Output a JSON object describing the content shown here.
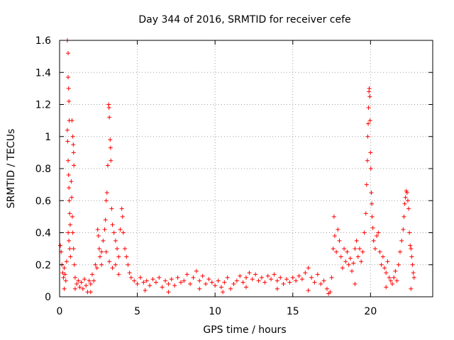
{
  "chart_data": {
    "type": "scatter",
    "title": "Day 344 of 2016, SRMTID for receiver cefe",
    "xlabel": "GPS time / hours",
    "ylabel": "SRMTID / TECUs",
    "xlim": [
      0,
      24
    ],
    "ylim": [
      0,
      1.6
    ],
    "xticks": [
      0,
      5,
      10,
      15,
      20
    ],
    "xtick_labels": [
      "0",
      "5",
      "10",
      "15",
      "20"
    ],
    "yticks": [
      0,
      0.2,
      0.4,
      0.6,
      0.8,
      1.0,
      1.2,
      1.4,
      1.6
    ],
    "ytick_labels": [
      "0",
      "0.2",
      "0.4",
      "0.6",
      "0.8",
      "1",
      "1.2",
      "1.4",
      "1.6"
    ],
    "grid": true,
    "marker": "+",
    "color": "#ff0000",
    "series": [
      {
        "name": "SRMTID",
        "points": [
          [
            0.05,
            0.32
          ],
          [
            0.1,
            0.28
          ],
          [
            0.15,
            0.2
          ],
          [
            0.2,
            0.15
          ],
          [
            0.25,
            0.12
          ],
          [
            0.3,
            0.18
          ],
          [
            0.35,
            0.14
          ],
          [
            0.4,
            0.1
          ],
          [
            0.45,
            0.22
          ],
          [
            0.5,
            1.6
          ],
          [
            0.55,
            1.52
          ],
          [
            0.55,
            1.37
          ],
          [
            0.58,
            1.3
          ],
          [
            0.6,
            1.22
          ],
          [
            0.62,
            1.1
          ],
          [
            0.5,
            1.04
          ],
          [
            0.52,
            0.97
          ],
          [
            0.55,
            0.85
          ],
          [
            0.58,
            0.76
          ],
          [
            0.6,
            0.68
          ],
          [
            0.62,
            0.6
          ],
          [
            0.65,
            0.52
          ],
          [
            0.68,
            0.45
          ],
          [
            0.55,
            0.4
          ],
          [
            0.6,
            0.35
          ],
          [
            0.65,
            0.3
          ],
          [
            0.7,
            0.25
          ],
          [
            0.8,
            1.1
          ],
          [
            0.85,
            1.0
          ],
          [
            0.88,
            0.95
          ],
          [
            0.9,
            0.9
          ],
          [
            0.92,
            0.82
          ],
          [
            0.75,
            0.72
          ],
          [
            0.78,
            0.62
          ],
          [
            0.82,
            0.5
          ],
          [
            0.85,
            0.4
          ],
          [
            0.9,
            0.3
          ],
          [
            0.95,
            0.2
          ],
          [
            1.0,
            0.12
          ],
          [
            1.1,
            0.08
          ],
          [
            1.2,
            0.1
          ],
          [
            1.3,
            0.06
          ],
          [
            1.4,
            0.09
          ],
          [
            1.5,
            0.05
          ],
          [
            1.6,
            0.11
          ],
          [
            1.7,
            0.07
          ],
          [
            1.8,
            0.03
          ],
          [
            1.9,
            0.1
          ],
          [
            2.0,
            0.08
          ],
          [
            2.1,
            0.14
          ],
          [
            2.2,
            0.1
          ],
          [
            2.3,
            0.2
          ],
          [
            2.4,
            0.18
          ],
          [
            2.45,
            0.42
          ],
          [
            2.5,
            0.38
          ],
          [
            2.55,
            0.3
          ],
          [
            2.6,
            0.25
          ],
          [
            2.7,
            0.28
          ],
          [
            2.8,
            0.35
          ],
          [
            2.9,
            0.42
          ],
          [
            2.95,
            0.48
          ],
          [
            3.0,
            0.6
          ],
          [
            3.05,
            0.65
          ],
          [
            3.1,
            0.82
          ],
          [
            3.15,
            1.2
          ],
          [
            3.18,
            1.18
          ],
          [
            3.2,
            1.12
          ],
          [
            3.25,
            0.98
          ],
          [
            3.28,
            0.93
          ],
          [
            3.3,
            0.85
          ],
          [
            3.35,
            0.55
          ],
          [
            3.4,
            0.45
          ],
          [
            3.5,
            0.4
          ],
          [
            3.6,
            0.35
          ],
          [
            3.7,
            0.3
          ],
          [
            3.8,
            0.25
          ],
          [
            3.9,
            0.42
          ],
          [
            4.0,
            0.55
          ],
          [
            4.05,
            0.5
          ],
          [
            4.1,
            0.4
          ],
          [
            4.2,
            0.3
          ],
          [
            4.3,
            0.25
          ],
          [
            4.4,
            0.2
          ],
          [
            4.5,
            0.15
          ],
          [
            2.7,
            0.2
          ],
          [
            3.0,
            0.28
          ],
          [
            3.2,
            0.22
          ],
          [
            3.4,
            0.18
          ],
          [
            3.6,
            0.2
          ],
          [
            3.8,
            0.14
          ],
          [
            4.6,
            0.12
          ],
          [
            4.8,
            0.1
          ],
          [
            5.0,
            0.08
          ],
          [
            5.2,
            0.12
          ],
          [
            5.4,
            0.09
          ],
          [
            5.6,
            0.1
          ],
          [
            5.8,
            0.07
          ],
          [
            6.0,
            0.11
          ],
          [
            6.2,
            0.09
          ],
          [
            6.4,
            0.12
          ],
          [
            6.6,
            0.06
          ],
          [
            6.8,
            0.1
          ],
          [
            7.0,
            0.08
          ],
          [
            7.2,
            0.11
          ],
          [
            7.4,
            0.07
          ],
          [
            7.6,
            0.12
          ],
          [
            7.8,
            0.09
          ],
          [
            8.0,
            0.1
          ],
          [
            8.2,
            0.14
          ],
          [
            8.4,
            0.08
          ],
          [
            8.6,
            0.12
          ],
          [
            8.8,
            0.16
          ],
          [
            9.0,
            0.1
          ],
          [
            9.2,
            0.13
          ],
          [
            9.4,
            0.08
          ],
          [
            9.6,
            0.11
          ],
          [
            9.8,
            0.09
          ],
          [
            10.0,
            0.07
          ],
          [
            10.2,
            0.1
          ],
          [
            10.4,
            0.06
          ],
          [
            10.6,
            0.09
          ],
          [
            10.8,
            0.12
          ],
          [
            11.0,
            0.05
          ],
          [
            11.2,
            0.08
          ],
          [
            11.4,
            0.1
          ],
          [
            11.6,
            0.13
          ],
          [
            11.8,
            0.09
          ],
          [
            12.0,
            0.12
          ],
          [
            12.2,
            0.15
          ],
          [
            12.4,
            0.11
          ],
          [
            12.6,
            0.14
          ],
          [
            12.8,
            0.1
          ],
          [
            13.0,
            0.12
          ],
          [
            13.2,
            0.09
          ],
          [
            13.4,
            0.13
          ],
          [
            13.6,
            0.11
          ],
          [
            13.8,
            0.14
          ],
          [
            14.0,
            0.1
          ],
          [
            14.2,
            0.12
          ],
          [
            14.4,
            0.08
          ],
          [
            14.6,
            0.11
          ],
          [
            14.8,
            0.09
          ],
          [
            15.0,
            0.12
          ],
          [
            15.2,
            0.1
          ],
          [
            15.4,
            0.13
          ],
          [
            15.6,
            0.11
          ],
          [
            15.8,
            0.15
          ],
          [
            16.0,
            0.18
          ],
          [
            16.2,
            0.12
          ],
          [
            16.4,
            0.09
          ],
          [
            16.6,
            0.14
          ],
          [
            16.8,
            0.08
          ],
          [
            17.0,
            0.1
          ],
          [
            17.2,
            0.05
          ],
          [
            17.4,
            0.03
          ],
          [
            17.5,
            0.12
          ],
          [
            17.6,
            0.3
          ],
          [
            17.65,
            0.5
          ],
          [
            17.7,
            0.38
          ],
          [
            17.8,
            0.28
          ],
          [
            17.9,
            0.42
          ],
          [
            18.0,
            0.35
          ],
          [
            18.1,
            0.25
          ],
          [
            18.2,
            0.18
          ],
          [
            18.3,
            0.3
          ],
          [
            18.4,
            0.22
          ],
          [
            18.5,
            0.28
          ],
          [
            18.6,
            0.2
          ],
          [
            18.7,
            0.24
          ],
          [
            18.8,
            0.16
          ],
          [
            18.9,
            0.21
          ],
          [
            19.0,
            0.3
          ],
          [
            19.1,
            0.35
          ],
          [
            19.2,
            0.25
          ],
          [
            19.3,
            0.3
          ],
          [
            19.4,
            0.22
          ],
          [
            19.5,
            0.28
          ],
          [
            19.6,
            0.4
          ],
          [
            19.7,
            0.52
          ],
          [
            19.75,
            0.7
          ],
          [
            19.8,
            0.85
          ],
          [
            19.82,
            1.0
          ],
          [
            19.85,
            1.08
          ],
          [
            19.87,
            1.18
          ],
          [
            19.9,
            1.28
          ],
          [
            19.92,
            1.3
          ],
          [
            19.95,
            1.25
          ],
          [
            19.97,
            1.1
          ],
          [
            20.0,
            0.9
          ],
          [
            20.02,
            0.8
          ],
          [
            20.05,
            0.65
          ],
          [
            20.08,
            0.58
          ],
          [
            20.1,
            0.5
          ],
          [
            20.15,
            0.43
          ],
          [
            20.2,
            0.35
          ],
          [
            20.3,
            0.3
          ],
          [
            20.4,
            0.38
          ],
          [
            20.5,
            0.4
          ],
          [
            20.6,
            0.28
          ],
          [
            20.7,
            0.2
          ],
          [
            20.8,
            0.25
          ],
          [
            20.9,
            0.18
          ],
          [
            21.0,
            0.15
          ],
          [
            21.1,
            0.22
          ],
          [
            21.2,
            0.12
          ],
          [
            21.3,
            0.1
          ],
          [
            21.4,
            0.08
          ],
          [
            21.5,
            0.12
          ],
          [
            21.6,
            0.16
          ],
          [
            21.7,
            0.1
          ],
          [
            21.8,
            0.2
          ],
          [
            21.9,
            0.28
          ],
          [
            22.0,
            0.35
          ],
          [
            22.1,
            0.42
          ],
          [
            22.15,
            0.5
          ],
          [
            22.2,
            0.58
          ],
          [
            22.25,
            0.62
          ],
          [
            22.3,
            0.66
          ],
          [
            22.35,
            0.65
          ],
          [
            22.4,
            0.6
          ],
          [
            22.45,
            0.55
          ],
          [
            22.5,
            0.4
          ],
          [
            22.55,
            0.32
          ],
          [
            22.6,
            0.3
          ],
          [
            22.65,
            0.25
          ],
          [
            22.7,
            0.2
          ],
          [
            22.75,
            0.15
          ],
          [
            22.8,
            0.12
          ],
          [
            0.3,
            0.05
          ],
          [
            1.0,
            0.05
          ],
          [
            2.0,
            0.03
          ],
          [
            5.5,
            0.04
          ],
          [
            7.0,
            0.03
          ],
          [
            9.0,
            0.05
          ],
          [
            10.5,
            0.03
          ],
          [
            12.0,
            0.06
          ],
          [
            14.0,
            0.05
          ],
          [
            16.0,
            0.04
          ],
          [
            17.3,
            0.02
          ],
          [
            19.0,
            0.08
          ],
          [
            21.0,
            0.06
          ],
          [
            22.6,
            0.05
          ]
        ]
      }
    ]
  }
}
